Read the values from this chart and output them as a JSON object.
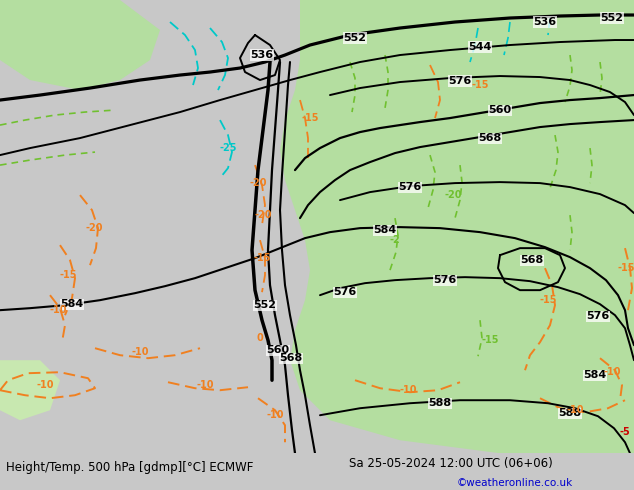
{
  "title_left": "Height/Temp. 500 hPa [gdmp][°C] ECMWF",
  "title_right": "Sa 25-05-2024 12:00 UTC (06+06)",
  "credit": "©weatheronline.co.uk",
  "fig_width": 6.34,
  "fig_height": 4.9,
  "dpi": 100,
  "bg_grey": "#c8c8c8",
  "bg_green": "#b4dea0",
  "bg_green2": "#c8e8b0",
  "contour_black": "#000000",
  "contour_thick": 2.5,
  "contour_thin": 1.3,
  "temp_orange": "#f08020",
  "temp_cyan": "#00c8c8",
  "temp_green": "#70c030",
  "bottom_bg": "#d8d8d8",
  "credit_color": "#0000cc",
  "text_fontsize": 8.5,
  "label_fontsize": 8,
  "temp_fontsize": 7
}
